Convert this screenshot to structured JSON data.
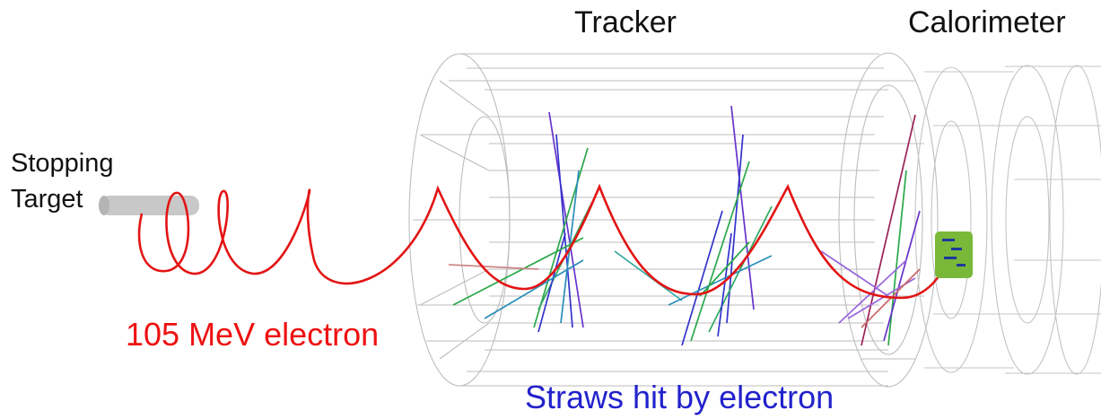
{
  "labels": {
    "tracker": "Tracker",
    "calorimeter": "Calorimeter",
    "stopping_target_line1": "Stopping",
    "stopping_target_line2": "Target",
    "electron": "105 MeV electron",
    "straws": "Straws hit by electron"
  },
  "colors": {
    "electron_track": "#e31414",
    "straws_label": "#2222cc",
    "wireframe": "#bdbdbd",
    "target": "#c8c8c8",
    "calo_hit": "#6cae2c"
  }
}
